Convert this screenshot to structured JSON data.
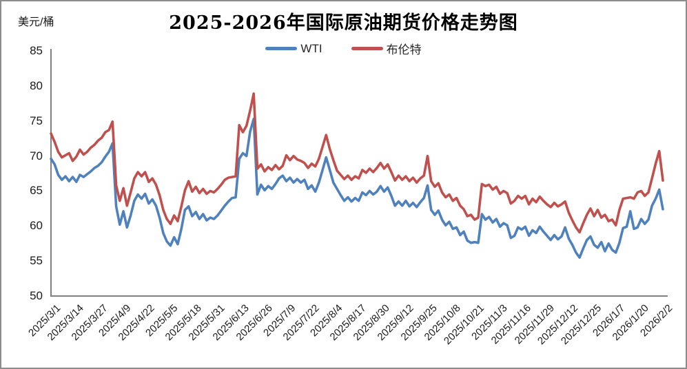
{
  "title": "2025-2026年国际原油期货价格走势图",
  "y_axis_unit": "美元/桶",
  "legend": [
    {
      "label": "WTI",
      "color": "#4F81BD"
    },
    {
      "label": "布伦特",
      "color": "#C0504D"
    }
  ],
  "chart_data": {
    "type": "line",
    "title": "2025-2026年国际原油期货价格走势图",
    "xlabel": "",
    "ylabel": "美元/桶",
    "ylim": [
      50,
      85
    ],
    "y_ticks": [
      85,
      80,
      75,
      70,
      65,
      60,
      55,
      50
    ],
    "grid": false,
    "legend_position": "top-center",
    "axis_color": "#808080",
    "x_tick_labels": [
      "2025/3/1",
      "2025/3/14",
      "2025/3/27",
      "2025/4/9",
      "2025/4/22",
      "2025/5/5",
      "2025/5/18",
      "2025/5/31",
      "2025/6/13",
      "2025/6/26",
      "2025/7/9",
      "2025/7/22",
      "2025/8/4",
      "2025/8/17",
      "2025/8/30",
      "2025/9/12",
      "2025/9/25",
      "2025/10/8",
      "2025/10/21",
      "2025/11/3",
      "2025/11/16",
      "2025/11/29",
      "2025/12/12",
      "2025/12/25",
      "2026/1/7",
      "2026/1/20",
      "2026/2/2"
    ],
    "x_tick_interval_days": 13,
    "x_range_days": [
      0,
      338
    ],
    "sample_step_days": 2,
    "series": [
      {
        "name": "WTI",
        "color": "#4F81BD",
        "values": [
          69.6,
          68.8,
          67.3,
          66.6,
          67.1,
          66.4,
          67.0,
          66.3,
          67.3,
          67.0,
          67.4,
          67.8,
          68.3,
          68.6,
          69.1,
          69.9,
          70.6,
          71.8,
          62.8,
          60.2,
          62.1,
          59.8,
          61.5,
          63.6,
          64.5,
          63.9,
          64.6,
          63.2,
          63.8,
          62.9,
          61.2,
          59.0,
          57.8,
          57.2,
          58.4,
          57.4,
          59.6,
          62.3,
          62.8,
          61.4,
          62.0,
          61.0,
          61.7,
          60.8,
          61.2,
          61.0,
          61.5,
          62.2,
          62.9,
          63.5,
          64.0,
          64.1,
          69.6,
          70.4,
          70.0,
          73.5,
          75.3,
          64.5,
          65.9,
          65.1,
          65.7,
          65.3,
          66.0,
          66.8,
          67.2,
          66.4,
          66.9,
          66.2,
          66.7,
          66.2,
          66.6,
          65.3,
          65.8,
          64.9,
          66.2,
          68.0,
          69.8,
          68.0,
          66.2,
          65.3,
          64.4,
          63.6,
          64.1,
          63.5,
          64.0,
          63.6,
          64.8,
          64.4,
          65.0,
          64.5,
          64.9,
          65.7,
          64.9,
          65.5,
          64.3,
          62.9,
          63.5,
          62.9,
          63.6,
          62.8,
          63.3,
          62.7,
          63.4,
          64.0,
          65.8,
          62.3,
          61.6,
          62.2,
          60.9,
          60.1,
          60.6,
          59.6,
          59.8,
          58.7,
          59.2,
          57.9,
          57.6,
          57.7,
          57.6,
          61.7,
          60.9,
          61.3,
          60.5,
          61.0,
          59.9,
          60.4,
          60.1,
          58.3,
          58.6,
          59.8,
          59.5,
          59.9,
          58.6,
          59.4,
          59.0,
          59.9,
          59.2,
          58.6,
          58.0,
          58.7,
          58.1,
          58.5,
          59.8,
          58.2,
          57.3,
          56.2,
          55.5,
          56.8,
          58.0,
          58.5,
          57.3,
          56.9,
          57.7,
          56.4,
          57.5,
          56.6,
          56.2,
          57.6,
          59.7,
          59.9,
          62.1,
          59.6,
          59.8,
          61.0,
          60.3,
          60.9,
          62.9,
          63.9,
          65.2,
          62.4
        ]
      },
      {
        "name": "布伦特",
        "color": "#C0504D",
        "values": [
          73.2,
          72.0,
          70.6,
          69.8,
          70.1,
          70.4,
          69.3,
          69.9,
          70.9,
          70.2,
          70.6,
          71.2,
          71.6,
          72.2,
          72.6,
          73.4,
          73.7,
          74.9,
          65.8,
          63.6,
          65.4,
          62.9,
          64.8,
          66.8,
          67.7,
          67.1,
          67.7,
          66.3,
          66.8,
          65.9,
          64.4,
          62.3,
          61.0,
          60.3,
          61.5,
          60.7,
          62.8,
          65.1,
          66.4,
          64.9,
          65.6,
          64.7,
          65.3,
          64.6,
          65.0,
          64.8,
          65.3,
          65.9,
          66.6,
          66.9,
          67.0,
          67.1,
          74.4,
          73.4,
          74.3,
          76.5,
          78.9,
          68.2,
          68.8,
          67.8,
          68.4,
          68.0,
          68.7,
          68.1,
          68.6,
          70.1,
          69.4,
          70.0,
          69.5,
          69.3,
          69.0,
          68.3,
          68.9,
          68.5,
          69.6,
          71.3,
          73.0,
          71.0,
          69.4,
          67.9,
          67.3,
          66.7,
          67.2,
          66.6,
          67.1,
          66.8,
          68.0,
          67.6,
          68.2,
          67.7,
          68.3,
          69.0,
          68.2,
          68.8,
          67.7,
          66.5,
          67.2,
          66.6,
          67.1,
          66.4,
          66.9,
          66.2,
          66.8,
          67.2,
          70.0,
          66.4,
          65.6,
          66.1,
          64.8,
          64.1,
          64.5,
          63.6,
          64.0,
          62.9,
          62.4,
          61.4,
          61.6,
          60.9,
          61.2,
          66.0,
          65.7,
          65.9,
          65.2,
          65.6,
          64.6,
          65.0,
          64.7,
          63.2,
          63.6,
          64.3,
          63.9,
          64.3,
          63.1,
          63.9,
          63.4,
          64.2,
          63.6,
          63.1,
          62.7,
          63.3,
          62.8,
          63.1,
          63.5,
          61.9,
          60.8,
          59.8,
          59.1,
          60.4,
          61.6,
          62.5,
          61.4,
          62.3,
          61.2,
          61.6,
          60.7,
          60.9,
          60.1,
          62.3,
          63.9,
          64.0,
          64.1,
          63.9,
          64.8,
          65.0,
          64.3,
          64.8,
          66.8,
          68.9,
          70.7,
          66.5
        ]
      }
    ]
  }
}
